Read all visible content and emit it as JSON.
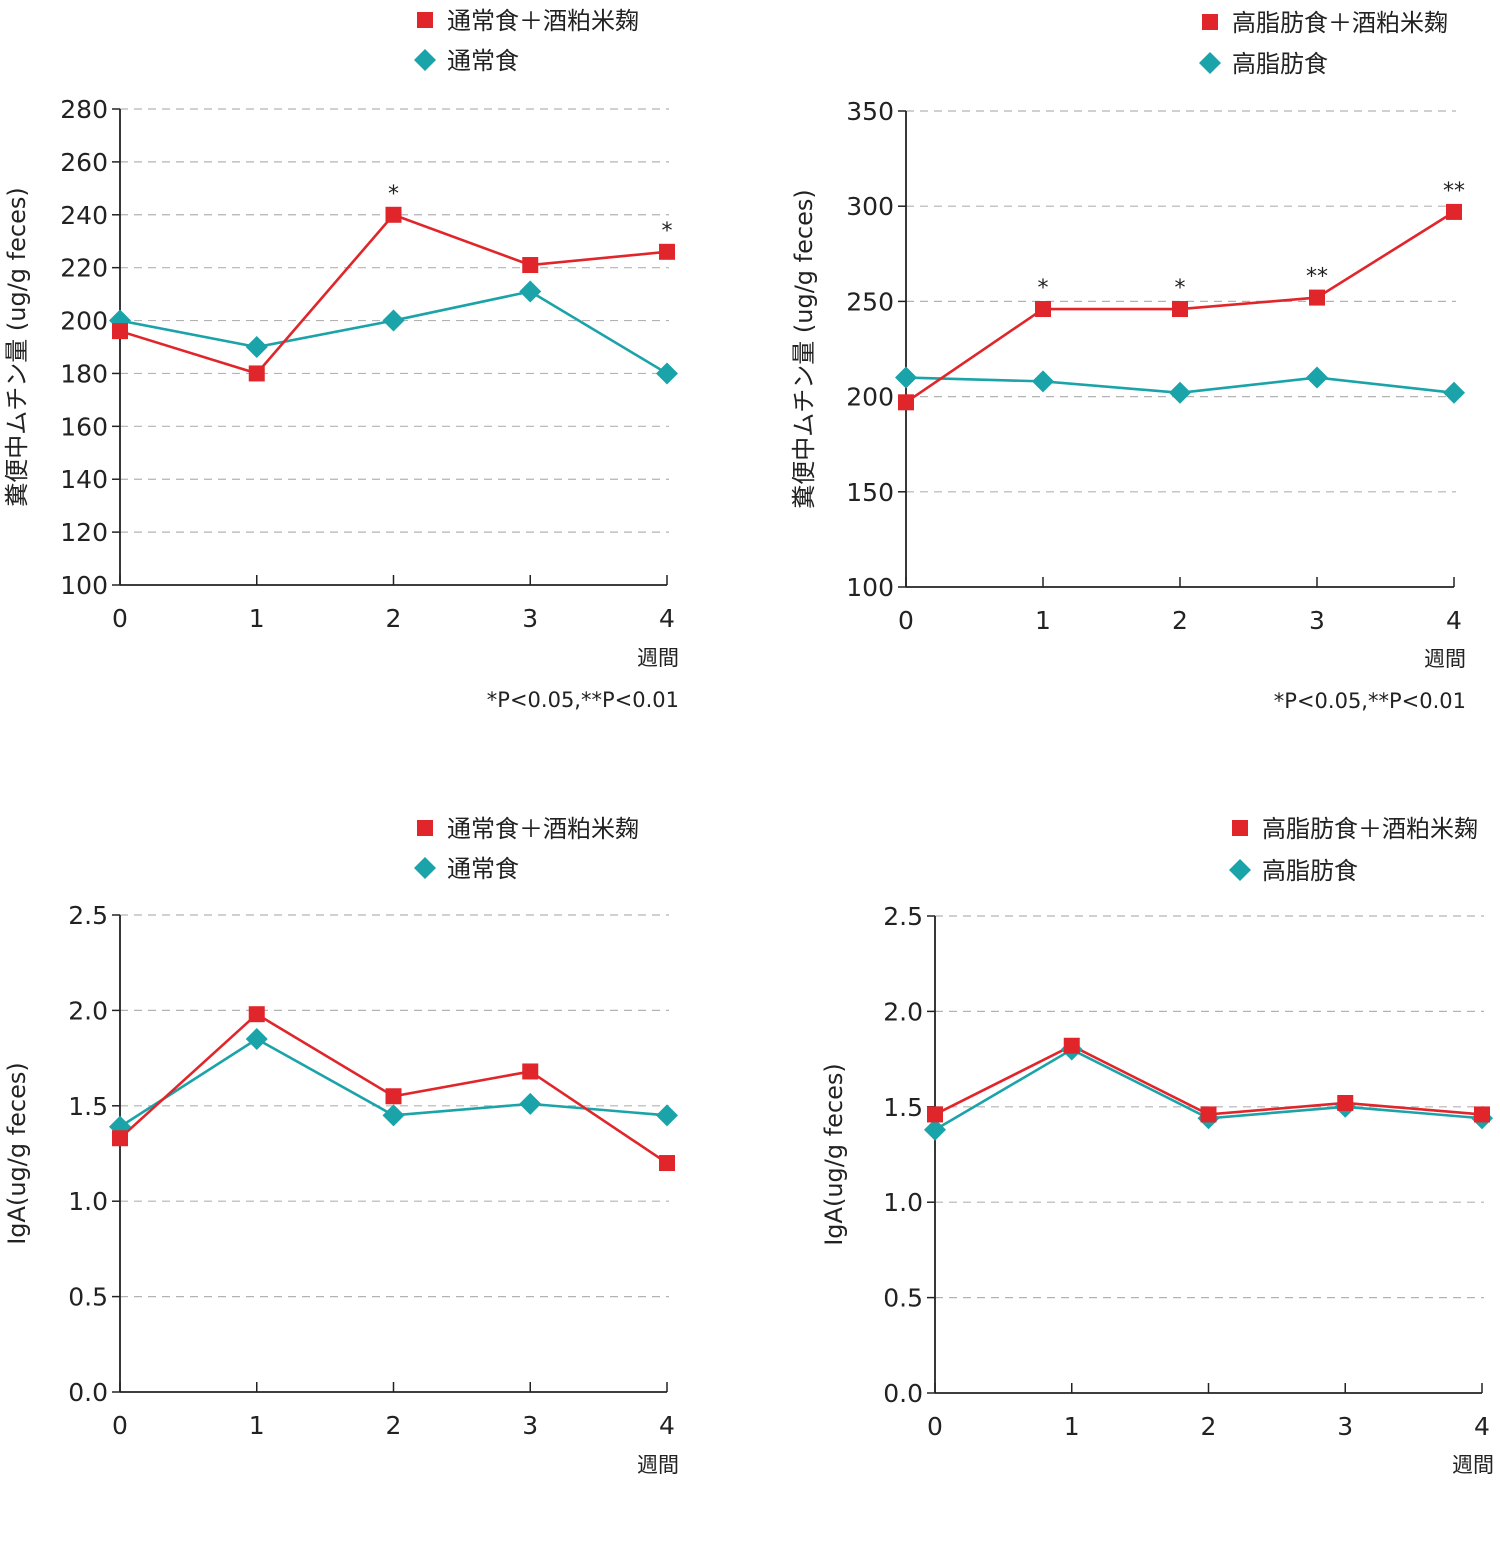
{
  "colors": {
    "treatment": "#e0262b",
    "control": "#1aa3a8",
    "grid": "#b3b3b3",
    "axis": "#222222"
  },
  "chart_data": [
    {
      "type": "line",
      "ylabel": "糞便中ムチン量 (ug/g feces)",
      "xlabel": "週間",
      "categories": [
        "0",
        "1",
        "2",
        "3",
        "4"
      ],
      "ylim": [
        100,
        280
      ],
      "yticks": [
        "100",
        "120",
        "140",
        "160",
        "180",
        "200",
        "220",
        "240",
        "260",
        "280"
      ],
      "grid": true,
      "legend_placement": "top-right",
      "series": [
        {
          "name": "通常食＋酒粕米麹",
          "marker": "square",
          "color": "#e0262b",
          "values": [
            196,
            180,
            240,
            221,
            226
          ]
        },
        {
          "name": "通常食",
          "marker": "diamond",
          "color": "#1aa3a8",
          "values": [
            200,
            190,
            200,
            211,
            180
          ]
        }
      ],
      "annotations": [
        {
          "x": "2",
          "text": "*",
          "y": 240
        },
        {
          "x": "4",
          "text": "*",
          "y": 226
        }
      ],
      "footnote": "*P<0.05,**P<0.01"
    },
    {
      "type": "line",
      "ylabel": "糞便中ムチン量 (ug/g feces)",
      "xlabel": "週間",
      "categories": [
        "0",
        "1",
        "2",
        "3",
        "4"
      ],
      "ylim": [
        100,
        350
      ],
      "yticks": [
        "100",
        "150",
        "200",
        "250",
        "300",
        "350"
      ],
      "grid": true,
      "legend_placement": "top-right",
      "series": [
        {
          "name": "高脂肪食＋酒粕米麹",
          "marker": "square",
          "color": "#e0262b",
          "values": [
            197,
            246,
            246,
            252,
            297
          ]
        },
        {
          "name": "高脂肪食",
          "marker": "diamond",
          "color": "#1aa3a8",
          "values": [
            210,
            208,
            202,
            210,
            202
          ]
        }
      ],
      "annotations": [
        {
          "x": "1",
          "text": "*",
          "y": 246
        },
        {
          "x": "2",
          "text": "*",
          "y": 246
        },
        {
          "x": "3",
          "text": "**",
          "y": 252
        },
        {
          "x": "4",
          "text": "**",
          "y": 297
        }
      ],
      "footnote": "*P<0.05,**P<0.01"
    },
    {
      "type": "line",
      "ylabel": "IgA(ug/g feces)",
      "xlabel": "週間",
      "categories": [
        "0",
        "1",
        "2",
        "3",
        "4"
      ],
      "ylim": [
        0,
        2.5
      ],
      "yticks": [
        "0.0",
        "0.5",
        "1.0",
        "1.5",
        "2.0",
        "2.5"
      ],
      "grid": true,
      "legend_placement": "top-right",
      "series": [
        {
          "name": "通常食＋酒粕米麹",
          "marker": "square",
          "color": "#e0262b",
          "values": [
            1.33,
            1.98,
            1.55,
            1.68,
            1.2
          ]
        },
        {
          "name": "通常食",
          "marker": "diamond",
          "color": "#1aa3a8",
          "values": [
            1.39,
            1.85,
            1.45,
            1.51,
            1.45
          ]
        }
      ],
      "annotations": [],
      "footnote": ""
    },
    {
      "type": "line",
      "ylabel": "IgA(ug/g feces)",
      "xlabel": "週間",
      "categories": [
        "0",
        "1",
        "2",
        "3",
        "4"
      ],
      "ylim": [
        0,
        2.5
      ],
      "yticks": [
        "0.0",
        "0.5",
        "1.0",
        "1.5",
        "2.0",
        "2.5"
      ],
      "grid": true,
      "legend_placement": "top-right",
      "series": [
        {
          "name": "高脂肪食＋酒粕米麹",
          "marker": "square",
          "color": "#e0262b",
          "values": [
            1.46,
            1.82,
            1.46,
            1.52,
            1.46
          ]
        },
        {
          "name": "高脂肪食",
          "marker": "diamond",
          "color": "#1aa3a8",
          "values": [
            1.38,
            1.8,
            1.44,
            1.5,
            1.44
          ]
        }
      ],
      "annotations": [],
      "footnote": ""
    }
  ]
}
